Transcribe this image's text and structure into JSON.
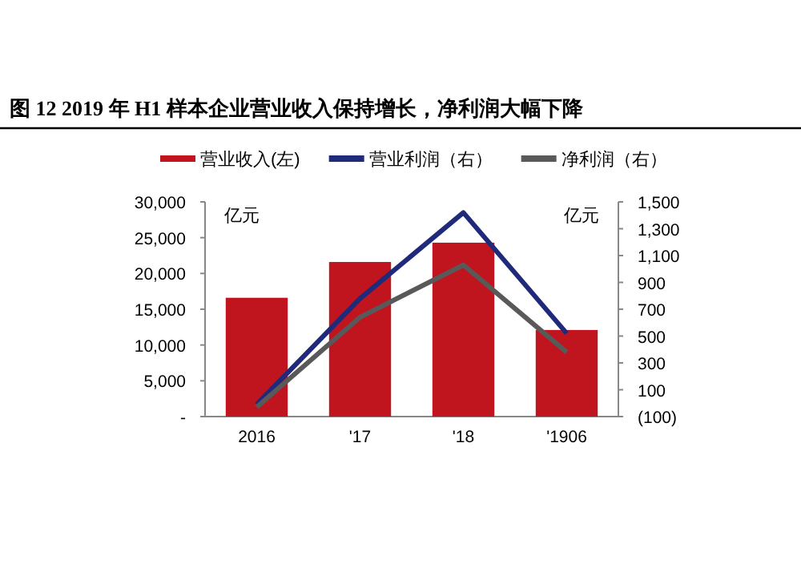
{
  "chart_data": {
    "type": "bar",
    "title": "图 12    2019 年 H1 样本企业营业收入保持增长，净利润大幅下降",
    "ylabel": "亿元",
    "y2label": "亿元",
    "categories": [
      "2016",
      "'17",
      "'18",
      "'1906"
    ],
    "series": [
      {
        "name": "营业收入(左)",
        "color": "#c0141f",
        "values": [
          16600,
          21600,
          24300,
          12100
        ]
      },
      {
        "name": "营业利润（右）",
        "type": "line",
        "axis": "y2",
        "color": "#1f2a7a",
        "values": [
          -10,
          780,
          1420,
          520
        ]
      },
      {
        "name": "净利润（右）",
        "type": "line",
        "axis": "y2",
        "color": "#595959",
        "values": [
          -30,
          640,
          1030,
          380
        ]
      }
    ],
    "ylim": [
      0,
      30000
    ],
    "yticks": [
      {
        "value": 0,
        "label": "-"
      },
      {
        "value": 5000,
        "label": "5,000"
      },
      {
        "value": 10000,
        "label": "10,000"
      },
      {
        "value": 15000,
        "label": "15,000"
      },
      {
        "value": 20000,
        "label": "20,000"
      },
      {
        "value": 25000,
        "label": "25,000"
      },
      {
        "value": 30000,
        "label": "30,000"
      }
    ],
    "y2lim": [
      -100,
      1500
    ],
    "y2ticks": [
      {
        "value": -100,
        "label": "(100)"
      },
      100,
      300,
      500,
      700,
      900,
      {
        "value": 1100,
        "label": "1,100"
      },
      {
        "value": 1300,
        "label": "1,300"
      },
      {
        "value": 1500,
        "label": "1,500"
      }
    ],
    "legend": "top",
    "grid": false
  }
}
